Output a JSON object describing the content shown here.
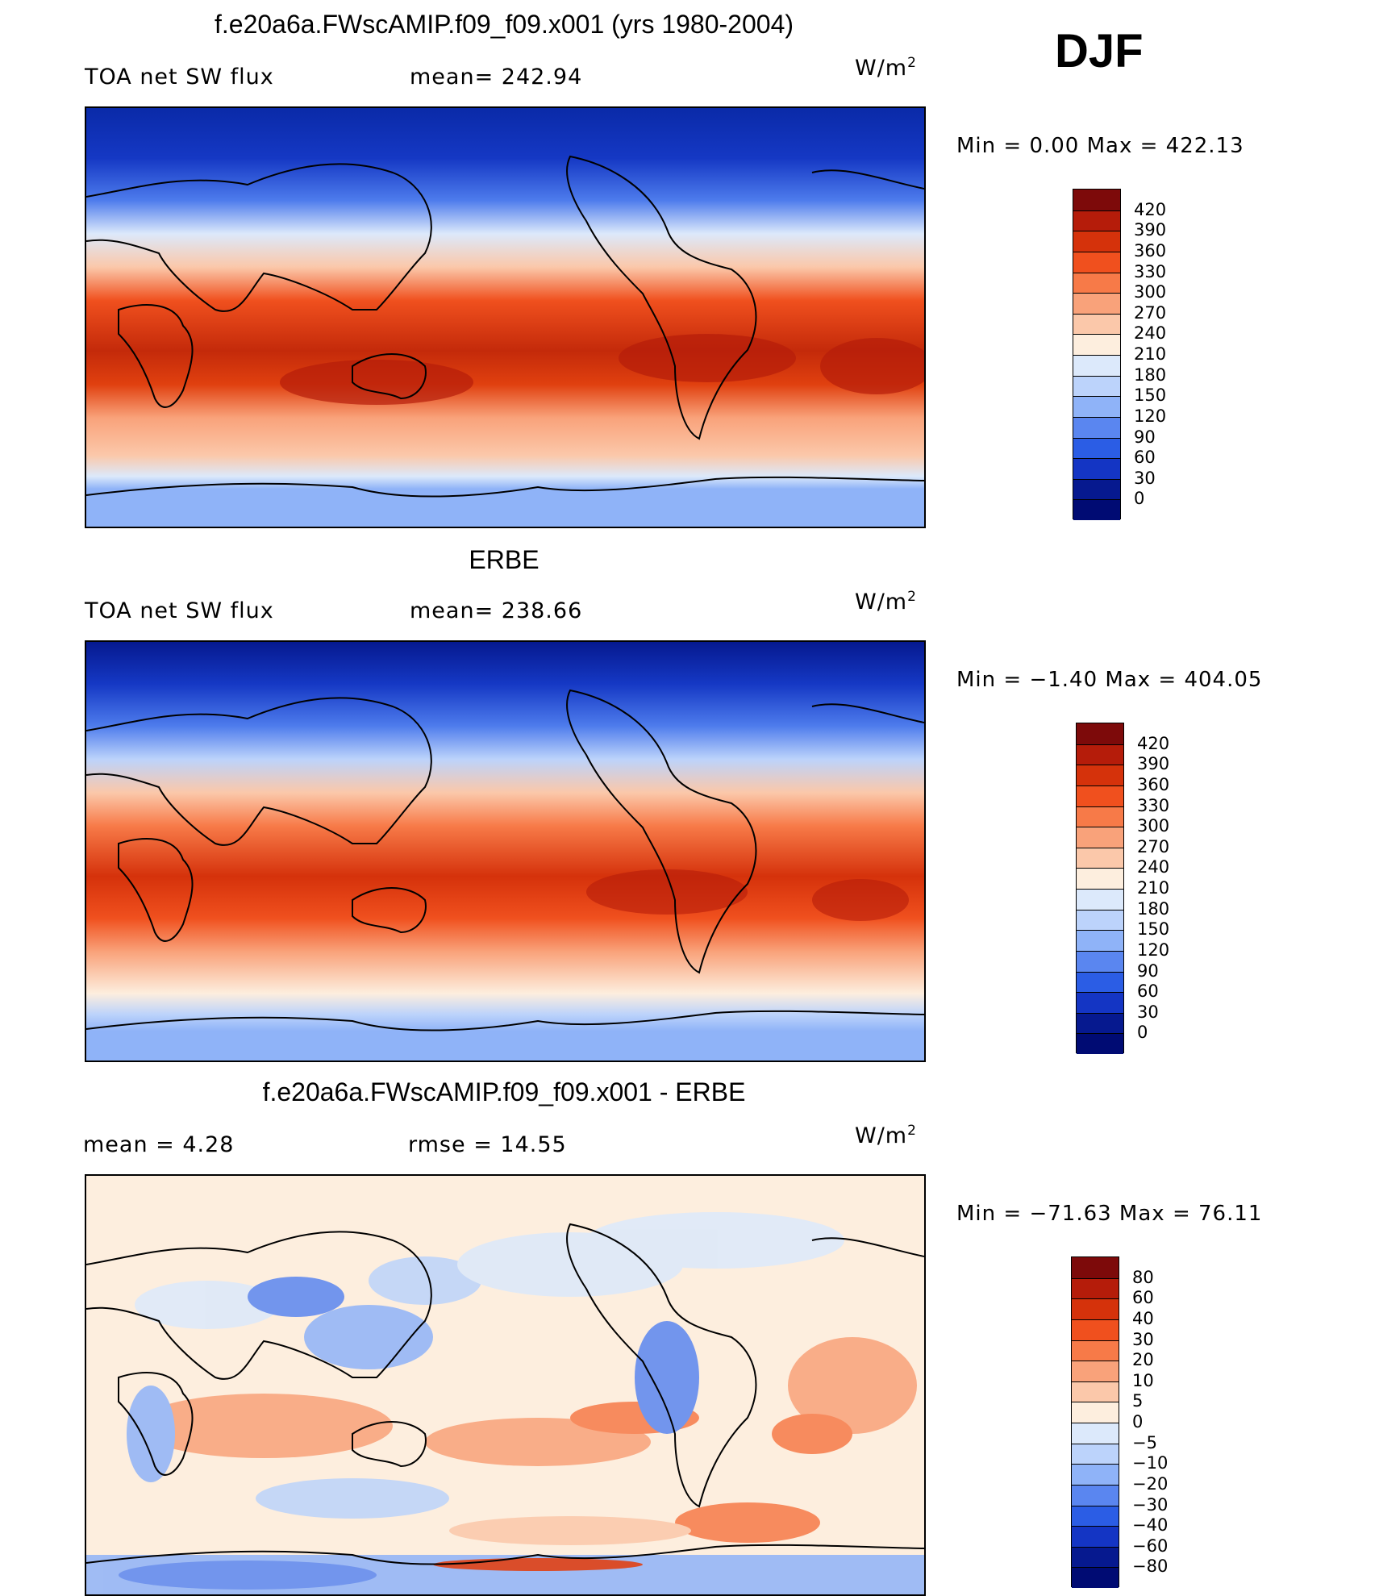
{
  "season": "DJF",
  "units_base": "W/m",
  "units_exp": "2",
  "panels": [
    {
      "title": "f.e20a6a.FWscAMIP.f09_f09.x001 (yrs 1980-2004)",
      "left_label": "TOA net SW flux",
      "mid_label": "mean= 242.94",
      "minmax": "Min =    0.00 Max =  422.13",
      "map_name": "model-map"
    },
    {
      "title": "ERBE",
      "left_label": "TOA net SW flux",
      "mid_label": "mean= 238.66",
      "minmax": "Min =  −1.40 Max =  404.05",
      "map_name": "obs-map"
    },
    {
      "title": "f.e20a6a.FWscAMIP.f09_f09.x001 - ERBE",
      "left_label": "mean =    4.28",
      "mid_label": "rmse =   14.55",
      "minmax": "Min = −71.63 Max =   76.11",
      "map_name": "diff-map"
    }
  ],
  "colorbars": {
    "flux": {
      "labels": [
        "420",
        "390",
        "360",
        "330",
        "300",
        "270",
        "240",
        "210",
        "180",
        "150",
        "120",
        "90",
        "60",
        "30",
        "0"
      ],
      "colors": [
        "#7d0a0a",
        "#b51c0a",
        "#d5320b",
        "#f0501e",
        "#f77a48",
        "#f9a27a",
        "#fbc8aa",
        "#fdeede",
        "#dce9fb",
        "#bcd3fb",
        "#8fb3f8",
        "#5a86f0",
        "#2b5de5",
        "#1435c4",
        "#06198f",
        "#000b73"
      ]
    },
    "diff": {
      "labels": [
        "80",
        "60",
        "40",
        "30",
        "20",
        "10",
        "5",
        "0",
        "−5",
        "−10",
        "−20",
        "−30",
        "−40",
        "−60",
        "−80"
      ],
      "colors": [
        "#7d0a0a",
        "#b51c0a",
        "#d5320b",
        "#f0501e",
        "#f77a48",
        "#f9a27a",
        "#fbc8aa",
        "#fdeede",
        "#dce9fb",
        "#bcd3fb",
        "#8fb3f8",
        "#5a86f0",
        "#2b5de5",
        "#1435c4",
        "#06198f",
        "#000b73"
      ]
    }
  }
}
